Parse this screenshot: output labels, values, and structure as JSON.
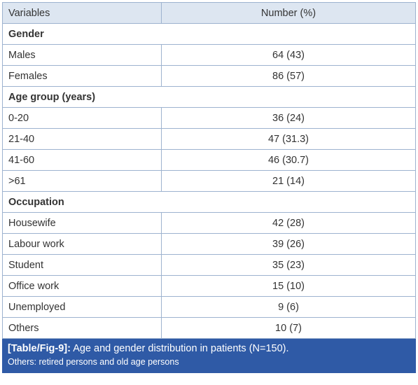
{
  "table": {
    "header": [
      "Variables",
      "Number (%)"
    ],
    "sections": [
      {
        "title": "Gender",
        "rows": [
          [
            "Males",
            "64 (43)"
          ],
          [
            "Females",
            "86 (57)"
          ]
        ]
      },
      {
        "title": "Age group (years)",
        "rows": [
          [
            "0-20",
            "36 (24)"
          ],
          [
            "21-40",
            "47 (31.3)"
          ],
          [
            "41-60",
            "46 (30.7)"
          ],
          [
            ">61",
            "21 (14)"
          ]
        ]
      },
      {
        "title": "Occupation",
        "rows": [
          [
            "Housewife",
            "42 (28)"
          ],
          [
            "Labour work",
            "39 (26)"
          ],
          [
            "Student",
            "35 (23)"
          ],
          [
            "Office work",
            "15 (10)"
          ],
          [
            "Unemployed",
            "9 (6)"
          ],
          [
            "Others",
            "10 (7)"
          ]
        ]
      }
    ]
  },
  "caption": {
    "label": "[Table/Fig-9]:",
    "text": "Age and gender distribution in patients (N=150).",
    "note": "Others: retired persons and old age persons"
  }
}
